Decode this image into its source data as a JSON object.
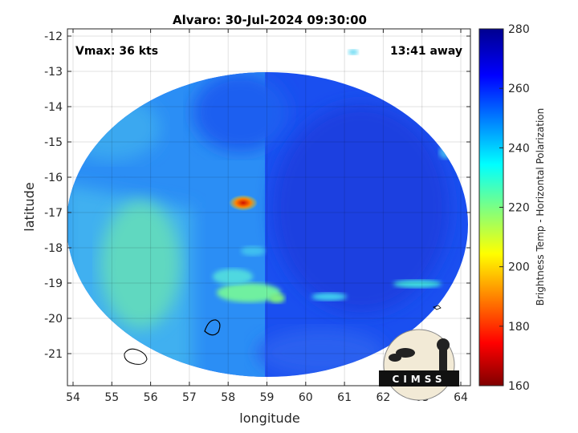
{
  "title": "Alvaro: 30-Jul-2024 09:30:00",
  "vmax_label": "Vmax: 36 kts",
  "time_offset_label": "13:41 away",
  "xlabel": "longitude",
  "ylabel": "latitude",
  "x_ticks": [
    "54",
    "55",
    "56",
    "57",
    "58",
    "59",
    "60",
    "61",
    "62",
    "63",
    "64"
  ],
  "y_ticks": [
    "-12",
    "-13",
    "-14",
    "-15",
    "-16",
    "-17",
    "-18",
    "-19",
    "-20",
    "-21"
  ],
  "colorbar": {
    "label": "Brightness Temp - Horizontal Polarization",
    "ticks": [
      "160",
      "180",
      "200",
      "220",
      "240",
      "260",
      "280"
    ],
    "range": [
      160,
      280
    ],
    "colormap": "jet"
  },
  "logo": {
    "text": "CIMSS"
  },
  "chart_data": {
    "type": "heatmap",
    "title": "Alvaro: 30-Jul-2024 09:30:00",
    "xlabel": "longitude",
    "ylabel": "latitude",
    "xlim": [
      53.8,
      64.2
    ],
    "ylim": [
      -21.9,
      -11.8
    ],
    "colorbar_label": "Brightness Temp - Horizontal Polarization",
    "clim": [
      160,
      280
    ],
    "grid": true,
    "annotations": [
      "Vmax: 36 kts",
      "13:41 away"
    ],
    "min_feature": {
      "lon": 58.3,
      "lat": -16.8,
      "approx_value": 185
    }
  }
}
